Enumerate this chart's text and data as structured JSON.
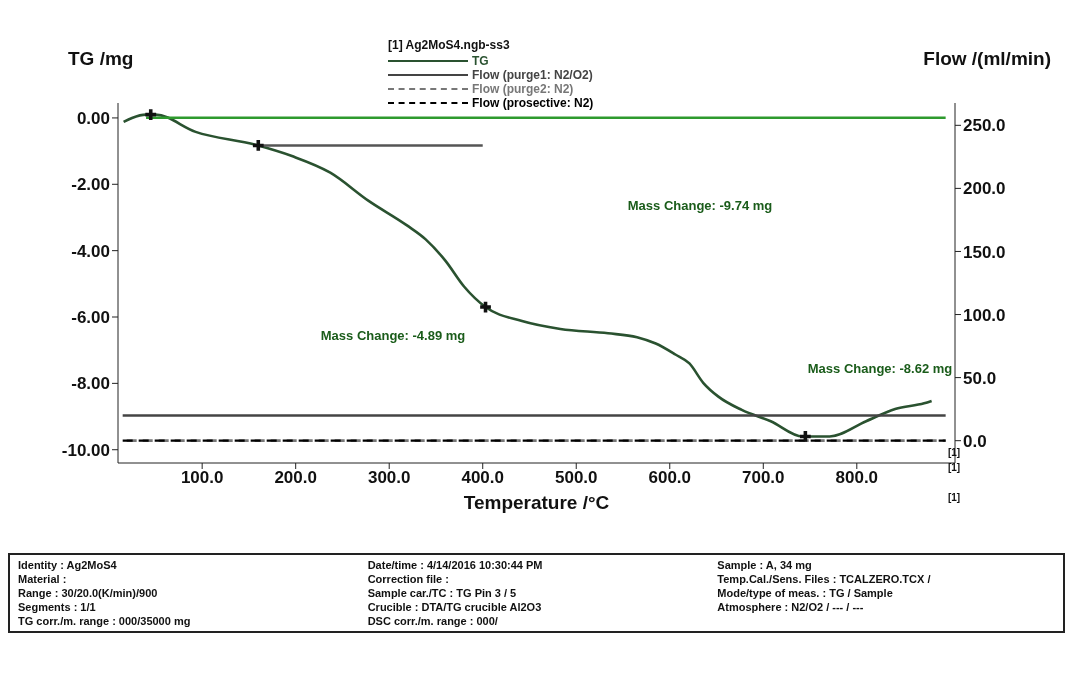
{
  "chart_data": {
    "type": "line",
    "legend_title": "[1] Ag2MoS4.ngb-ss3",
    "xlabel": "Temperature /°C",
    "ylabel": "TG /mg",
    "y2label": "Flow /(ml/min)",
    "legend": "top",
    "grid": false,
    "xlim": [
      10,
      905
    ],
    "xticks": [
      {
        "value": 100,
        "label": "100.0"
      },
      {
        "value": 200,
        "label": "200.0"
      },
      {
        "value": 300,
        "label": "300.0"
      },
      {
        "value": 400,
        "label": "400.0"
      },
      {
        "value": 500,
        "label": "500.0"
      },
      {
        "value": 600,
        "label": "600.0"
      },
      {
        "value": 700,
        "label": "700.0"
      },
      {
        "value": 800,
        "label": "800.0"
      }
    ],
    "ylim": [
      -10.4,
      0.45
    ],
    "yticks": [
      {
        "value": 0,
        "label": "0.00"
      },
      {
        "value": -2,
        "label": "-2.00"
      },
      {
        "value": -4,
        "label": "-4.00"
      },
      {
        "value": -6,
        "label": "-6.00"
      },
      {
        "value": -8,
        "label": "-8.00"
      },
      {
        "value": -10,
        "label": "-10.00"
      }
    ],
    "y2lim": [
      -17.7,
      267.7
    ],
    "y2ticks": [
      {
        "value": 0,
        "label": "0.0"
      },
      {
        "value": 50,
        "label": "50.0"
      },
      {
        "value": 100,
        "label": "100.0"
      },
      {
        "value": 150,
        "label": "150.0"
      },
      {
        "value": 200,
        "label": "200.0"
      },
      {
        "value": 250,
        "label": "250.0"
      }
    ],
    "series": [
      {
        "name": "TG",
        "type": "line",
        "color": "#2a5230",
        "line_style": "solid",
        "marker": "none",
        "x": [
          16,
          25,
          40,
          50,
          93,
          157,
          196,
          237,
          278,
          319,
          339,
          360,
          380,
          403,
          442,
          483,
          534,
          565,
          585,
          606,
          621,
          636,
          652,
          677,
          708,
          742,
          771,
          810,
          841,
          872,
          880
        ],
        "values": [
          -0.12,
          0.0,
          0.1,
          0.1,
          -0.42,
          -0.81,
          -1.15,
          -1.65,
          -2.5,
          -3.24,
          -3.66,
          -4.3,
          -5.08,
          -5.7,
          -6.12,
          -6.36,
          -6.49,
          -6.61,
          -6.8,
          -7.13,
          -7.4,
          -7.99,
          -8.4,
          -8.8,
          -9.14,
          -9.6,
          -9.6,
          -9.14,
          -8.77,
          -8.6,
          -8.53
        ]
      },
      {
        "name": "Flow (purge1: N2/O2)",
        "type": "line",
        "axis": "y2",
        "color": "#444444",
        "line_style": "solid",
        "marker": "none",
        "x": [
          15,
          895
        ],
        "values": [
          20,
          20
        ]
      },
      {
        "name": "Flow (purge2: N2)",
        "type": "line",
        "axis": "y2",
        "color": "#777777",
        "line_style": "dashed",
        "marker": "none",
        "x": [
          15,
          895
        ],
        "values": [
          0,
          0
        ]
      },
      {
        "name": "Flow (prosective: N2)",
        "type": "line",
        "axis": "y2",
        "color": "#000000",
        "line_style": "dashed",
        "marker": "none",
        "x": [
          15,
          895
        ],
        "values": [
          0,
          0
        ]
      },
      {
        "type": "line",
        "axis": "y2",
        "color": "#2e9a2e",
        "line_style": "solid",
        "marker": "none",
        "x": [
          40,
          895
        ],
        "values": [
          256,
          256
        ]
      },
      {
        "type": "line",
        "color": "#555555",
        "line_style": "solid",
        "marker": "none",
        "x": [
          160,
          400
        ],
        "values": [
          -0.83,
          -0.83
        ]
      },
      {
        "type": "scatter",
        "color": "#111111",
        "marker": "cross",
        "x": [
          45,
          160,
          403,
          745
        ],
        "values": [
          0.1,
          -0.83,
          -5.7,
          -9.6
        ]
      }
    ],
    "annotations": [
      "Mass Change: -4.89 mg",
      "Mass Change: -9.74 mg",
      "Mass Change: -8.62 mg",
      "[1]",
      "[1]",
      "[1]",
      "Identity : Ag2MoS4",
      "Date/time : 4/14/2016 10:30:44 PM",
      "Sample : A, 34 mg",
      "Material :",
      "Correction file :",
      "Temp.Cal./Sens. Files : TCALZERO.TCX /",
      "Range : 30/20.0(K/min)/900",
      "Sample car./TC : TG Pin 3 / 5",
      "Mode/type of meas. : TG / Sample",
      "Segments : 1/1",
      "Crucible : DTA/TG crucible Al2O3",
      "Atmosphere : N2/O2 / --- / ---",
      "TG corr./m. range : 000/35000 mg",
      "DSC corr./m. range : 000/"
    ]
  }
}
